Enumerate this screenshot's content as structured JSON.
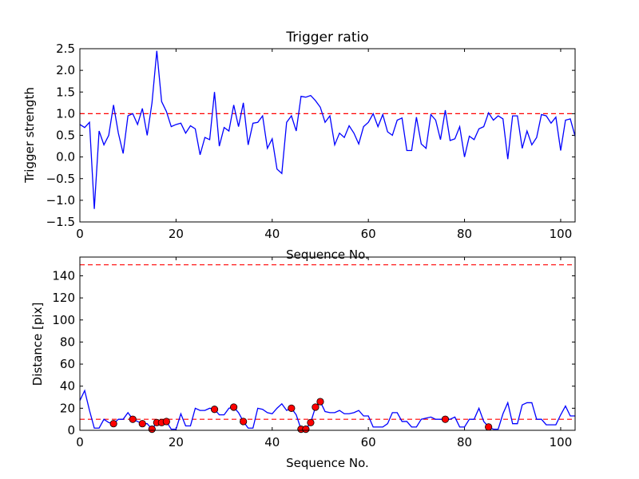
{
  "chart_data": [
    {
      "type": "line",
      "title": "Trigger ratio",
      "xlabel": "Sequence No.",
      "ylabel": "Trigger strength",
      "xlim": [
        0,
        103
      ],
      "ylim": [
        -1.5,
        2.5
      ],
      "xticks": [
        0,
        20,
        40,
        60,
        80,
        100
      ],
      "xtick_labels": [
        "0",
        "20",
        "40",
        "60",
        "80",
        "100"
      ],
      "yticks": [
        -1.5,
        -1.0,
        -0.5,
        0.0,
        0.5,
        1.0,
        1.5,
        2.0,
        2.5
      ],
      "ytick_labels": [
        "−1.5",
        "−1.0",
        "−0.5",
        "0.0",
        "0.5",
        "1.0",
        "1.5",
        "2.0",
        "2.5"
      ],
      "line_color": "#0000ff",
      "threshold": {
        "value": 1.0,
        "color": "#ff0000",
        "style": "dashed"
      },
      "series": [
        {
          "name": "trigger strength",
          "x": [
            0,
            1,
            2,
            3,
            4,
            5,
            6,
            7,
            8,
            9,
            10,
            11,
            12,
            13,
            14,
            15,
            16,
            17,
            18,
            19,
            20,
            21,
            22,
            23,
            24,
            25,
            26,
            27,
            28,
            29,
            30,
            31,
            32,
            33,
            34,
            35,
            36,
            37,
            38,
            39,
            40,
            41,
            42,
            43,
            44,
            45,
            46,
            47,
            48,
            49,
            50,
            51,
            52,
            53,
            54,
            55,
            56,
            57,
            58,
            59,
            60,
            61,
            62,
            63,
            64,
            65,
            66,
            67,
            68,
            69,
            70,
            71,
            72,
            73,
            74,
            75,
            76,
            77,
            78,
            79,
            80,
            81,
            82,
            83,
            84,
            85,
            86,
            87,
            88,
            89,
            90,
            91,
            92,
            93,
            94,
            95,
            96,
            97,
            98,
            99,
            100,
            101,
            102,
            103
          ],
          "y": [
            0.75,
            0.68,
            0.8,
            -1.2,
            0.6,
            0.28,
            0.5,
            1.2,
            0.55,
            0.08,
            0.95,
            1.0,
            0.75,
            1.12,
            0.5,
            1.25,
            2.45,
            1.28,
            1.05,
            0.7,
            0.75,
            0.78,
            0.55,
            0.72,
            0.65,
            0.05,
            0.45,
            0.4,
            1.5,
            0.25,
            0.68,
            0.6,
            1.2,
            0.7,
            1.25,
            0.28,
            0.78,
            0.8,
            0.95,
            0.2,
            0.42,
            -0.28,
            -0.38,
            0.8,
            0.95,
            0.6,
            1.4,
            1.38,
            1.42,
            1.3,
            1.15,
            0.8,
            0.95,
            0.28,
            0.55,
            0.45,
            0.72,
            0.55,
            0.3,
            0.7,
            0.8,
            1.0,
            0.7,
            0.98,
            0.58,
            0.5,
            0.85,
            0.9,
            0.15,
            0.15,
            0.92,
            0.3,
            0.2,
            0.98,
            0.85,
            0.4,
            1.08,
            0.38,
            0.42,
            0.7,
            0.0,
            0.48,
            0.4,
            0.65,
            0.7,
            1.02,
            0.85,
            0.95,
            0.88,
            -0.05,
            0.95,
            0.95,
            0.2,
            0.6,
            0.28,
            0.45,
            0.98,
            0.95,
            0.78,
            0.92,
            0.15,
            0.85,
            0.88,
            0.48
          ]
        }
      ]
    },
    {
      "type": "line",
      "title": "",
      "xlabel": "Sequence No.",
      "ylabel": "Distance [pix]",
      "xlim": [
        0,
        103
      ],
      "ylim": [
        0,
        157
      ],
      "xticks": [
        0,
        20,
        40,
        60,
        80,
        100
      ],
      "xtick_labels": [
        "0",
        "20",
        "40",
        "60",
        "80",
        "100"
      ],
      "yticks": [
        0,
        20,
        40,
        60,
        80,
        100,
        120,
        140
      ],
      "ytick_labels": [
        "0",
        "20",
        "40",
        "60",
        "80",
        "100",
        "120",
        "140"
      ],
      "line_color": "#0000ff",
      "marker_color": "#ff0000",
      "thresholds": [
        {
          "value": 150,
          "color": "#ff0000",
          "style": "dashed"
        },
        {
          "value": 10,
          "color": "#ff0000",
          "style": "dashed"
        }
      ],
      "series": [
        {
          "name": "distance",
          "x": [
            0,
            1,
            2,
            3,
            4,
            5,
            6,
            7,
            8,
            9,
            10,
            11,
            12,
            13,
            14,
            15,
            16,
            17,
            18,
            19,
            20,
            21,
            22,
            23,
            24,
            25,
            26,
            27,
            28,
            29,
            30,
            31,
            32,
            33,
            34,
            35,
            36,
            37,
            38,
            39,
            40,
            41,
            42,
            43,
            44,
            45,
            46,
            47,
            48,
            49,
            50,
            51,
            52,
            53,
            54,
            55,
            56,
            57,
            58,
            59,
            60,
            61,
            62,
            63,
            64,
            65,
            66,
            67,
            68,
            69,
            70,
            71,
            72,
            73,
            74,
            75,
            76,
            77,
            78,
            79,
            80,
            81,
            82,
            83,
            84,
            85,
            86,
            87,
            88,
            89,
            90,
            91,
            92,
            93,
            94,
            95,
            96,
            97,
            98,
            99,
            100,
            101,
            102,
            103
          ],
          "y": [
            27,
            36,
            18,
            2,
            2,
            10,
            7,
            6,
            10,
            10,
            16,
            10,
            8,
            6,
            6,
            1,
            7,
            7,
            8,
            1,
            1,
            15,
            4,
            4,
            20,
            18,
            18,
            20,
            19,
            14,
            14,
            20,
            21,
            16,
            8,
            2,
            2,
            20,
            19,
            16,
            15,
            20,
            24,
            18,
            20,
            14,
            1,
            1,
            7,
            21,
            26,
            17,
            16,
            16,
            18,
            15,
            15,
            16,
            18,
            13,
            13,
            3,
            3,
            3,
            6,
            16,
            16,
            8,
            8,
            3,
            3,
            10,
            11,
            12,
            10,
            10,
            10,
            10,
            12,
            3,
            3,
            10,
            10,
            20,
            8,
            3,
            1,
            1,
            15,
            25,
            6,
            6,
            23,
            25,
            25,
            10,
            10,
            5,
            5,
            5,
            14,
            22,
            13,
            13
          ]
        },
        {
          "name": "flagged points",
          "type": "scatter",
          "x": [
            7,
            11,
            13,
            15,
            16,
            17,
            18,
            28,
            32,
            34,
            44,
            46,
            47,
            48,
            49,
            50,
            76,
            85
          ],
          "y": [
            6,
            10,
            6,
            1,
            7,
            7,
            8,
            19,
            21,
            8,
            20,
            1,
            1,
            7,
            21,
            26,
            10,
            3
          ]
        }
      ]
    }
  ]
}
